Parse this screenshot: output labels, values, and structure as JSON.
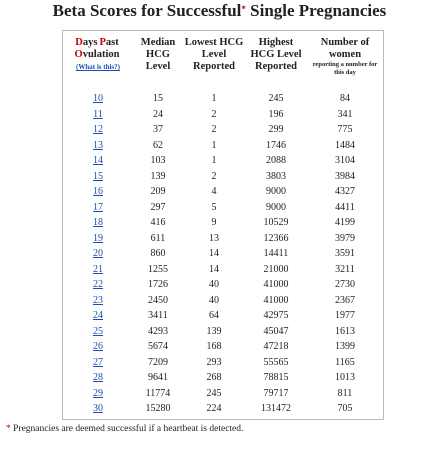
{
  "header": {
    "title_start": "Beta Scores for Successful",
    "title_marker": "*",
    "title_end": "Single Pregnancies"
  },
  "table": {
    "columns": {
      "days": {
        "words": [
          "Days",
          "Past",
          "Ovulation"
        ],
        "link": "(What is this?)"
      },
      "median": "Median HCG Level",
      "lowest": "Lowest HCG Level Reported",
      "highest": "Highest HCG Level Reported",
      "women": {
        "main": "Number of women",
        "note": "reporting a number for this day"
      }
    },
    "rows": [
      [
        10,
        15,
        1,
        245,
        84
      ],
      [
        11,
        24,
        2,
        196,
        341
      ],
      [
        12,
        37,
        2,
        299,
        775
      ],
      [
        13,
        62,
        1,
        1746,
        1484
      ],
      [
        14,
        103,
        1,
        2088,
        3104
      ],
      [
        15,
        139,
        2,
        3803,
        3984
      ],
      [
        16,
        209,
        4,
        9000,
        4327
      ],
      [
        17,
        297,
        5,
        9000,
        4411
      ],
      [
        18,
        416,
        9,
        10529,
        4199
      ],
      [
        19,
        611,
        13,
        12366,
        3979
      ],
      [
        20,
        860,
        14,
        14411,
        3591
      ],
      [
        21,
        1255,
        14,
        21000,
        3211
      ],
      [
        22,
        1726,
        40,
        41000,
        2730
      ],
      [
        23,
        2450,
        40,
        41000,
        2367
      ],
      [
        24,
        3411,
        64,
        42975,
        1977
      ],
      [
        25,
        4293,
        139,
        45047,
        1613
      ],
      [
        26,
        5674,
        168,
        47218,
        1399
      ],
      [
        27,
        7209,
        293,
        55565,
        1165
      ],
      [
        28,
        9641,
        268,
        78815,
        1013
      ],
      [
        29,
        11774,
        245,
        79717,
        811
      ],
      [
        30,
        15280,
        224,
        131472,
        705
      ]
    ]
  },
  "footnote": {
    "marker": "*",
    "text": "Pregnancies are deemed successful if a heartbeat is detected."
  }
}
